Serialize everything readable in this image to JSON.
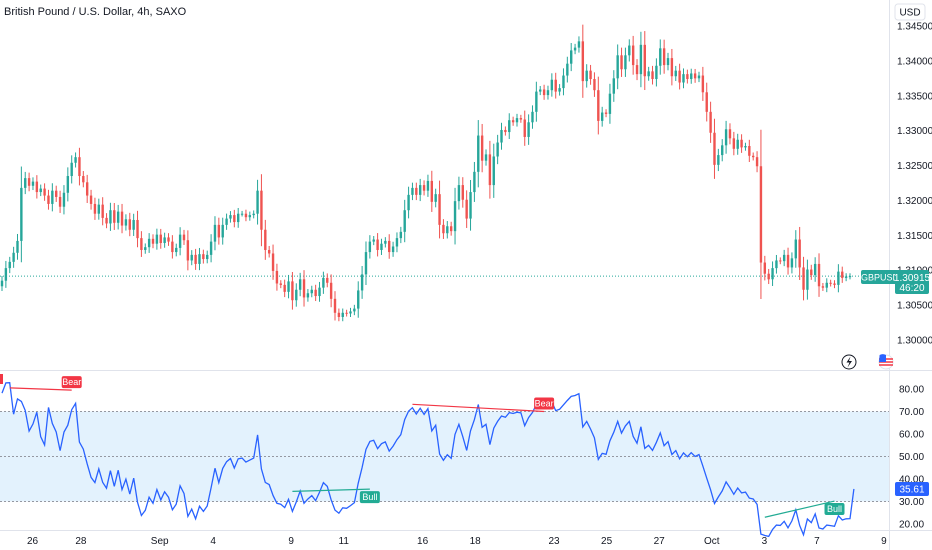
{
  "header": {
    "title": "British Pound / U.S. Dollar, 4h, SAXO",
    "currency": "USD"
  },
  "price_tag": {
    "symbol": "GBPUSD",
    "value": "1.30915",
    "countdown": "46:20"
  },
  "icons": {
    "flash": "lightning-icon",
    "flag": "us-flag-icon"
  },
  "colors": {
    "up": "#26a69a",
    "down": "#ef5350",
    "rsi": "#2962ff",
    "band_fill": "#e3f2fd",
    "bull": "#22ab94",
    "bear": "#f23645"
  },
  "chart_data": [
    {
      "type": "candlestick",
      "title": "British Pound / U.S. Dollar, 4h, SAXO",
      "ylim": [
        1.296,
        1.3475
      ],
      "y_ticks": [
        "1.34500",
        "1.34000",
        "1.33500",
        "1.33000",
        "1.32500",
        "1.32000",
        "1.31500",
        "1.31000",
        "1.30500",
        "1.30000"
      ],
      "y_tick_values": [
        1.345,
        1.34,
        1.335,
        1.33,
        1.325,
        1.32,
        1.315,
        1.31,
        1.305,
        1.3
      ],
      "x_ticks": [
        "26",
        "28",
        "Sep",
        "4",
        "9",
        "11",
        "16",
        "18",
        "23",
        "25",
        "27",
        "Oct",
        "3",
        "7",
        "9"
      ],
      "last_price": 1.30915,
      "closes": [
        1.3085,
        1.3103,
        1.3112,
        1.3125,
        1.3142,
        1.3218,
        1.3232,
        1.3221,
        1.3227,
        1.3212,
        1.3217,
        1.3207,
        1.3195,
        1.3214,
        1.3205,
        1.3191,
        1.3211,
        1.3235,
        1.3254,
        1.3262,
        1.3235,
        1.3226,
        1.3207,
        1.3195,
        1.3181,
        1.3194,
        1.3175,
        1.3167,
        1.3186,
        1.3168,
        1.3184,
        1.3164,
        1.3173,
        1.3158,
        1.3172,
        1.3146,
        1.3129,
        1.3133,
        1.3145,
        1.3138,
        1.3151,
        1.3139,
        1.3147,
        1.3141,
        1.3126,
        1.3132,
        1.3151,
        1.3143,
        1.3114,
        1.3122,
        1.3109,
        1.3123,
        1.3116,
        1.3122,
        1.3141,
        1.3165,
        1.3147,
        1.3165,
        1.3174,
        1.3179,
        1.3169,
        1.3181,
        1.3181,
        1.3176,
        1.3179,
        1.3181,
        1.3214,
        1.3158,
        1.3129,
        1.3124,
        1.3099,
        1.3081,
        1.3079,
        1.3069,
        1.3084,
        1.3057,
        1.3072,
        1.3087,
        1.3061,
        1.3067,
        1.3072,
        1.3063,
        1.3075,
        1.3089,
        1.3082,
        1.3059,
        1.3039,
        1.3033,
        1.3039,
        1.3038,
        1.3041,
        1.3045,
        1.3071,
        1.3094,
        1.3126,
        1.3141,
        1.3144,
        1.3129,
        1.3138,
        1.3142,
        1.3126,
        1.3134,
        1.3146,
        1.3155,
        1.3186,
        1.3208,
        1.3218,
        1.3208,
        1.3222,
        1.3214,
        1.3228,
        1.3198,
        1.3209,
        1.3165,
        1.3153,
        1.3163,
        1.3156,
        1.3199,
        1.3222,
        1.3201,
        1.3174,
        1.3212,
        1.3241,
        1.3293,
        1.3257,
        1.3266,
        1.3222,
        1.3263,
        1.3283,
        1.3301,
        1.3298,
        1.3315,
        1.3312,
        1.3318,
        1.3316,
        1.3291,
        1.3312,
        1.3327,
        1.3356,
        1.3359,
        1.3351,
        1.3358,
        1.3373,
        1.3356,
        1.3361,
        1.3379,
        1.3396,
        1.3415,
        1.3419,
        1.3428,
        1.3371,
        1.3386,
        1.3374,
        1.3358,
        1.3314,
        1.3326,
        1.3324,
        1.3353,
        1.3375,
        1.3408,
        1.3388,
        1.3408,
        1.3422,
        1.3394,
        1.3381,
        1.3423,
        1.3378,
        1.3385,
        1.3374,
        1.3393,
        1.3418,
        1.3394,
        1.3404,
        1.3378,
        1.3386,
        1.3369,
        1.3381,
        1.3374,
        1.3382,
        1.3375,
        1.3379,
        1.3355,
        1.3327,
        1.3297,
        1.3251,
        1.3265,
        1.3279,
        1.3302,
        1.3289,
        1.3274,
        1.3287,
        1.3276,
        1.3278,
        1.3264,
        1.3262,
        1.3249,
        1.3111,
        1.3095,
        1.3087,
        1.3103,
        1.3114,
        1.3113,
        1.3122,
        1.3104,
        1.3117,
        1.3144,
        1.3104,
        1.3072,
        1.3101,
        1.3093,
        1.3109,
        1.3077,
        1.3075,
        1.3082,
        1.3081,
        1.3079,
        1.3098,
        1.3089,
        1.3091,
        1.30915
      ]
    },
    {
      "type": "line",
      "series": [
        {
          "name": "",
          "values": [
            78.2,
            82.7,
            82.8,
            68.8,
            75.6,
            74.5,
            70.5,
            61.3,
            64.5,
            69.7,
            58.8,
            55.1,
            71.8,
            64.7,
            60.9,
            52.6,
            60.9,
            63.9,
            70.8,
            73.6,
            56.4,
            53.3,
            46.7,
            40.7,
            38.4,
            44.5,
            38.5,
            35.9,
            43.7,
            36.7,
            43.9,
            35.3,
            39.9,
            33.3,
            40.4,
            29.7,
            23.8,
            26.1,
            31.9,
            29.2,
            35.3,
            30.7,
            34.3,
            31.9,
            26.3,
            28.8,
            37.0,
            33.6,
            23.4,
            26.6,
            22.3,
            27.9,
            25.6,
            28.0,
            36.1,
            44.8,
            38.4,
            44.7,
            47.7,
            49.1,
            44.9,
            49.0,
            49.3,
            47.5,
            48.4,
            49.3,
            59.6,
            44.5,
            38.5,
            37.5,
            32.6,
            29.2,
            28.8,
            27.3,
            31.0,
            25.6,
            29.8,
            34.7,
            29.2,
            31.1,
            32.6,
            30.4,
            34.1,
            38.4,
            36.7,
            30.8,
            26.2,
            24.8,
            27.2,
            27.0,
            28.2,
            29.5,
            38.1,
            45.1,
            53.2,
            56.7,
            57.2,
            53.5,
            55.7,
            56.5,
            52.4,
            54.6,
            57.5,
            59.7,
            66.4,
            70.2,
            71.7,
            68.9,
            71.4,
            68.7,
            71.3,
            61.4,
            63.9,
            51.1,
            48.3,
            50.8,
            49.2,
            59.8,
            64.3,
            58.8,
            52.7,
            61.4,
            66.4,
            73.1,
            63.0,
            64.3,
            55.3,
            62.6,
            65.6,
            68.0,
            67.4,
            69.5,
            69.1,
            69.7,
            69.4,
            63.7,
            67.3,
            69.6,
            73.1,
            73.4,
            71.8,
            72.5,
            74.3,
            70.4,
            71.0,
            73.0,
            74.9,
            76.7,
            77.1,
            77.9,
            63.1,
            65.6,
            62.2,
            58.3,
            48.7,
            51.4,
            51.0,
            57.0,
            60.8,
            65.6,
            60.4,
            63.6,
            65.6,
            58.9,
            55.9,
            63.2,
            53.6,
            55.0,
            52.7,
            56.3,
            60.5,
            54.8,
            56.6,
            50.9,
            52.6,
            49.0,
            51.6,
            49.9,
            51.7,
            50.0,
            50.9,
            45.7,
            40.4,
            35.2,
            29.1,
            32.0,
            34.7,
            38.7,
            36.1,
            33.2,
            36.0,
            33.8,
            34.2,
            31.5,
            31.1,
            28.7,
            15.5,
            14.9,
            14.5,
            17.6,
            19.5,
            19.4,
            21.2,
            18.3,
            21.4,
            26.3,
            19.3,
            15.2,
            22.2,
            20.6,
            24.5,
            18.2,
            17.8,
            19.5,
            19.3,
            19.0,
            23.7,
            21.8,
            22.3,
            22.4,
            35.61
          ]
        }
      ],
      "ylim": [
        18,
        86
      ],
      "y_ticks": [
        "80.00",
        "70.00",
        "60.00",
        "50.00",
        "40.00",
        "30.00",
        "20.00"
      ],
      "y_tick_values": [
        80,
        70,
        60,
        50,
        40,
        30,
        20
      ],
      "band": [
        30,
        70
      ],
      "mid_line": 50,
      "last_value": "35.61",
      "divergences": [
        {
          "label": "Bear",
          "kind": "bear",
          "from": 80.5,
          "to": 79.5
        },
        {
          "label": "Bull",
          "kind": "bull",
          "from": 34.5,
          "to": 35.5
        },
        {
          "label": "Bear",
          "kind": "bear",
          "from": 73.2,
          "to": 70.0
        },
        {
          "label": "Bull",
          "kind": "bull",
          "from": 23.0,
          "to": 30.2
        }
      ]
    }
  ]
}
